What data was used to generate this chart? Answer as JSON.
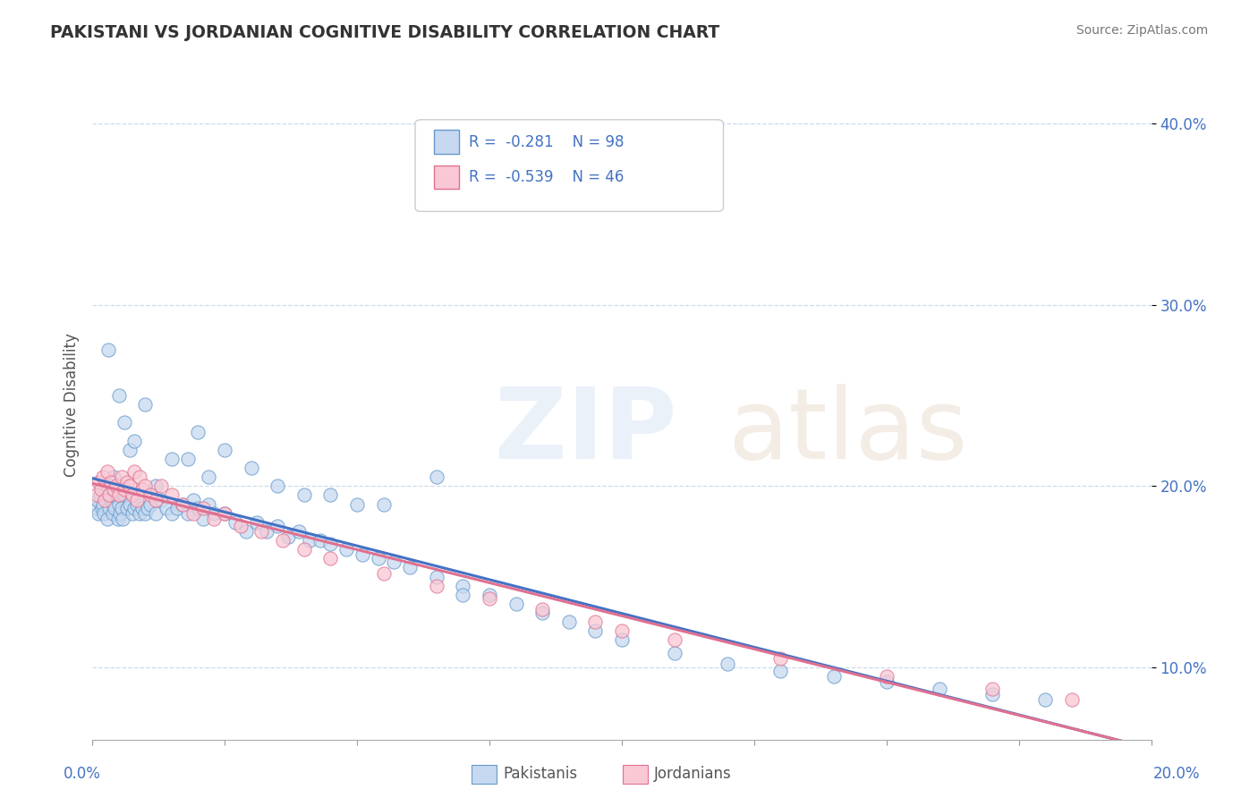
{
  "title": "PAKISTANI VS JORDANIAN COGNITIVE DISABILITY CORRELATION CHART",
  "source": "Source: ZipAtlas.com",
  "ylabel": "Cognitive Disability",
  "xlim": [
    0.0,
    20.0
  ],
  "ylim": [
    6.0,
    43.0
  ],
  "yticks": [
    10.0,
    20.0,
    30.0,
    40.0
  ],
  "ytick_labels": [
    "10.0%",
    "20.0%",
    "30.0%",
    "40.0%"
  ],
  "blue_face": "#c6d9f0",
  "blue_edge": "#6699cc",
  "pink_face": "#f9c8d4",
  "pink_edge": "#e07090",
  "line_blue": "#4472c4",
  "line_pink": "#e07090",
  "grid_color": "#c8d8e8",
  "pakistanis_x": [
    0.08,
    0.1,
    0.12,
    0.15,
    0.18,
    0.2,
    0.22,
    0.25,
    0.28,
    0.3,
    0.32,
    0.35,
    0.38,
    0.4,
    0.42,
    0.45,
    0.48,
    0.5,
    0.52,
    0.55,
    0.58,
    0.6,
    0.65,
    0.7,
    0.75,
    0.8,
    0.85,
    0.9,
    0.95,
    1.0,
    1.05,
    1.1,
    1.2,
    1.3,
    1.4,
    1.5,
    1.6,
    1.7,
    1.8,
    1.9,
    2.0,
    2.1,
    2.2,
    2.3,
    2.5,
    2.7,
    2.9,
    3.1,
    3.3,
    3.5,
    3.7,
    3.9,
    4.1,
    4.3,
    4.5,
    4.8,
    5.1,
    5.4,
    5.7,
    6.0,
    6.5,
    7.0,
    7.5,
    8.0,
    8.5,
    9.0,
    9.5,
    10.0,
    11.0,
    12.0,
    13.0,
    14.0,
    15.0,
    16.0,
    17.0,
    18.0,
    4.5,
    5.5,
    6.5,
    0.3,
    0.5,
    0.7,
    1.0,
    1.5,
    2.0,
    2.5,
    3.0,
    0.4,
    0.6,
    0.8,
    1.2,
    1.8,
    2.2,
    3.5,
    4.0,
    5.0,
    7.0
  ],
  "pakistanis_y": [
    18.8,
    19.2,
    18.5,
    19.5,
    18.8,
    19.0,
    18.5,
    19.8,
    18.2,
    19.5,
    18.8,
    19.2,
    18.5,
    19.0,
    18.8,
    19.5,
    18.2,
    19.0,
    18.5,
    18.8,
    18.2,
    19.5,
    18.8,
    19.0,
    18.5,
    18.8,
    19.0,
    18.5,
    18.8,
    18.5,
    18.8,
    19.0,
    18.5,
    19.2,
    18.8,
    18.5,
    18.8,
    19.0,
    18.5,
    19.2,
    18.8,
    18.2,
    19.0,
    18.5,
    18.5,
    18.0,
    17.5,
    18.0,
    17.5,
    17.8,
    17.2,
    17.5,
    17.0,
    17.0,
    16.8,
    16.5,
    16.2,
    16.0,
    15.8,
    15.5,
    15.0,
    14.5,
    14.0,
    13.5,
    13.0,
    12.5,
    12.0,
    11.5,
    10.8,
    10.2,
    9.8,
    9.5,
    9.2,
    8.8,
    8.5,
    8.2,
    19.5,
    19.0,
    20.5,
    27.5,
    25.0,
    22.0,
    24.5,
    21.5,
    23.0,
    22.0,
    21.0,
    20.5,
    23.5,
    22.5,
    20.0,
    21.5,
    20.5,
    20.0,
    19.5,
    19.0,
    14.0
  ],
  "jordanians_x": [
    0.08,
    0.12,
    0.16,
    0.2,
    0.24,
    0.28,
    0.32,
    0.36,
    0.4,
    0.45,
    0.5,
    0.55,
    0.6,
    0.65,
    0.7,
    0.75,
    0.8,
    0.85,
    0.9,
    0.95,
    1.0,
    1.1,
    1.2,
    1.3,
    1.5,
    1.7,
    1.9,
    2.1,
    2.3,
    2.5,
    2.8,
    3.2,
    3.6,
    4.0,
    4.5,
    5.5,
    6.5,
    7.5,
    8.5,
    9.5,
    11.0,
    13.0,
    15.0,
    17.0,
    18.5,
    10.0
  ],
  "jordanians_y": [
    19.5,
    20.2,
    19.8,
    20.5,
    19.2,
    20.8,
    19.5,
    20.2,
    19.8,
    20.0,
    19.5,
    20.5,
    19.8,
    20.2,
    20.0,
    19.5,
    20.8,
    19.2,
    20.5,
    19.8,
    20.0,
    19.5,
    19.2,
    20.0,
    19.5,
    19.0,
    18.5,
    18.8,
    18.2,
    18.5,
    17.8,
    17.5,
    17.0,
    16.5,
    16.0,
    15.2,
    14.5,
    13.8,
    13.2,
    12.5,
    11.5,
    10.5,
    9.5,
    8.8,
    8.2,
    12.0
  ]
}
